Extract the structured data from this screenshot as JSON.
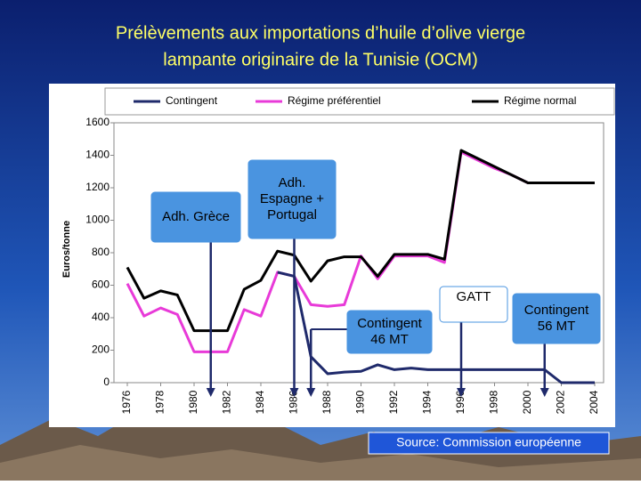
{
  "chart_data": {
    "type": "line",
    "title": [
      "Prélèvements aux importations d’huile d’olive vierge",
      "lampante originaire de la Tunisie (OCM)"
    ],
    "y_label": "Euros/tonne",
    "source": "Source: Commission européenne",
    "x": [
      1976,
      1977,
      1978,
      1979,
      1980,
      1981,
      1982,
      1983,
      1984,
      1985,
      1986,
      1987,
      1988,
      1989,
      1990,
      1991,
      1992,
      1993,
      1994,
      1995,
      1996,
      1997,
      1998,
      1999,
      2000,
      2001,
      2002,
      2003,
      2004
    ],
    "series": [
      {
        "name": "Contingent",
        "color": "#1f2a6b",
        "values": [
          null,
          null,
          null,
          null,
          null,
          null,
          null,
          null,
          null,
          680,
          655,
          160,
          55,
          65,
          70,
          110,
          80,
          90,
          80,
          80,
          80,
          80,
          80,
          80,
          80,
          80,
          0,
          0,
          0
        ]
      },
      {
        "name": "Régime préférentiel",
        "color": "#e83ad8",
        "values": [
          610,
          410,
          460,
          420,
          190,
          190,
          190,
          450,
          410,
          680,
          655,
          480,
          470,
          480,
          780,
          640,
          780,
          780,
          780,
          740,
          1420,
          1370,
          1320,
          1280,
          1230,
          1230,
          1230,
          1230,
          1230
        ]
      },
      {
        "name": "Régime normal",
        "color": "#000000",
        "values": [
          710,
          520,
          565,
          540,
          320,
          320,
          320,
          575,
          630,
          810,
          785,
          625,
          750,
          775,
          775,
          655,
          790,
          790,
          790,
          760,
          1430,
          1380,
          1330,
          1280,
          1230,
          1230,
          1230,
          1230,
          1230
        ]
      }
    ],
    "annotations": [
      {
        "text": [
          "Adh. Grèce"
        ],
        "x": 1981
      },
      {
        "text": [
          "Adh.",
          "Espagne +",
          "Portugal"
        ],
        "x": 1986
      },
      {
        "text": [
          "Contingent",
          "46 MT"
        ],
        "x": 1987
      },
      {
        "text": [
          "GATT"
        ],
        "x": 1996
      },
      {
        "text": [
          "Contingent",
          "56 MT"
        ],
        "x": 2001
      }
    ],
    "xlim": [
      1976,
      2004
    ],
    "xticks": [
      1976,
      1978,
      1980,
      1982,
      1984,
      1986,
      1988,
      1990,
      1992,
      1994,
      1996,
      1998,
      2000,
      2002,
      2004
    ],
    "ylim": [
      0,
      1600
    ],
    "yticks": [
      0,
      200,
      400,
      600,
      800,
      1000,
      1200,
      1400,
      1600
    ],
    "grid": false,
    "legend": "top"
  }
}
